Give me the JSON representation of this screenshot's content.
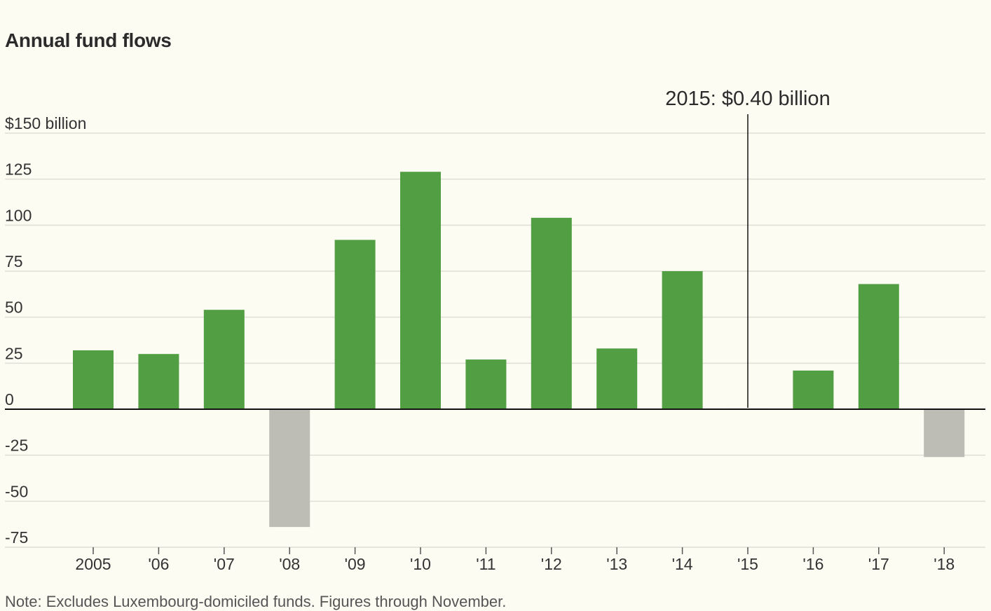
{
  "title": "Annual fund flows",
  "chart_data": {
    "type": "bar",
    "categories": [
      "2005",
      "'06",
      "'07",
      "'08",
      "'09",
      "'10",
      "'11",
      "'12",
      "'13",
      "'14",
      "'15",
      "'16",
      "'17",
      "'18"
    ],
    "values": [
      32,
      30,
      54,
      -64,
      92,
      129,
      27,
      104,
      33,
      75,
      0.4,
      21,
      68,
      -26
    ],
    "ylim": [
      -75,
      150
    ],
    "yticks": [
      150,
      125,
      100,
      75,
      50,
      25,
      0,
      -25,
      -50,
      -75
    ],
    "ytick_labels": [
      "$150 billion",
      "125",
      "100",
      "75",
      "50",
      "25",
      "0",
      "-25",
      "-50",
      "-75"
    ],
    "colors": {
      "positive": "#529f43",
      "negative": "#bdbcb5",
      "grid": "#e0ded4",
      "axis": "#111111"
    },
    "annotation": {
      "text": "2015: $0.40 billion",
      "category": "'15"
    },
    "grid": true
  },
  "footnote": "Note: Excludes Luxembourg-domiciled funds. Figures through November."
}
